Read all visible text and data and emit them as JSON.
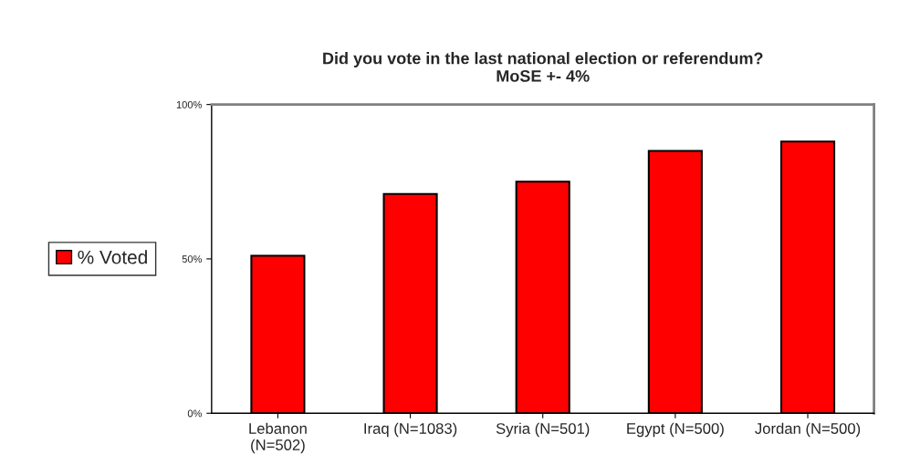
{
  "chart_data": {
    "type": "bar",
    "title": "Did you vote in the last national election or referendum?\nMoSE +- 4%",
    "categories": [
      "Lebanon\n(N=502)",
      "Iraq (N=1083)",
      "Syria (N=501)",
      "Egypt (N=500)",
      "Jordan (N=500)"
    ],
    "series": [
      {
        "name": "% Voted",
        "color": "#ff0000",
        "values": [
          51,
          71,
          75,
          85,
          88
        ]
      }
    ],
    "ylim": [
      0,
      100
    ],
    "yticks": [
      {
        "value": 0,
        "label": "0%"
      },
      {
        "value": 50,
        "label": "50%"
      },
      {
        "value": 100,
        "label": "100%"
      }
    ],
    "grid": false,
    "legend": "left"
  }
}
